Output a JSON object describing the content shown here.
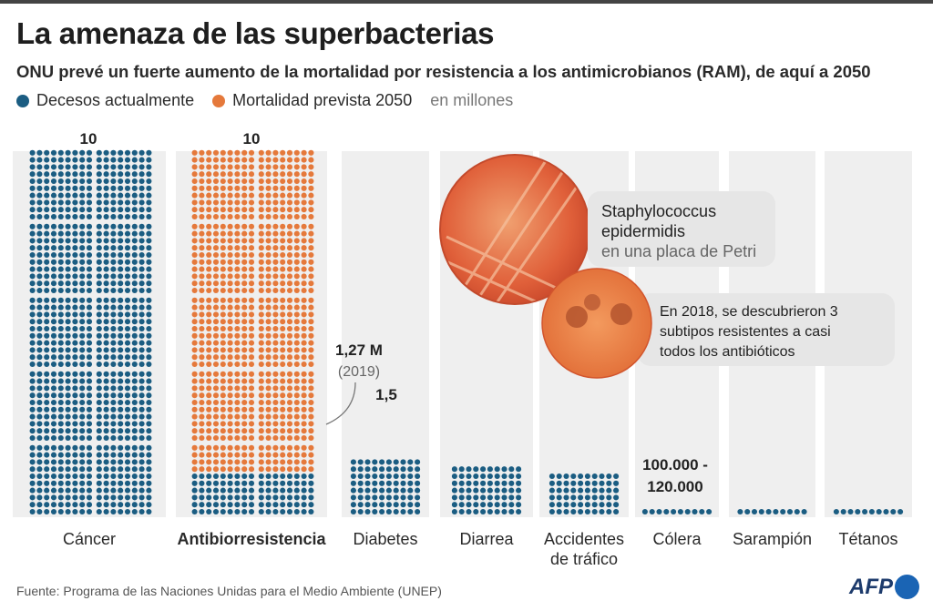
{
  "header": {
    "title": "La amenaza de las superbacterias",
    "subtitle": "ONU prevé un fuerte aumento de la mortalidad por resistencia a los antimicrobianos (RAM), de aquí a 2050"
  },
  "legend": {
    "current_label": "Decesos actualmente",
    "projected_label": "Mortalidad prevista 2050",
    "unit_label": "en millones"
  },
  "colors": {
    "current": "#1b5d82",
    "projected": "#e5793b",
    "column_bg": "#efefef"
  },
  "chart_data": {
    "type": "bar",
    "unit": "millones",
    "categories": [
      "Cáncer",
      "Antibiorresistencia",
      "Diabetes",
      "Diarrea",
      "Accidentes de tráfico",
      "Cólera",
      "Sarampión",
      "Tétanos"
    ],
    "category_labels": [
      [
        "Cáncer"
      ],
      [
        "Antibiorresistencia"
      ],
      [
        "Diabetes"
      ],
      [
        "Diarrea"
      ],
      [
        "Accidentes",
        "de tráfico"
      ],
      [
        "Cólera"
      ],
      [
        "Sarampión"
      ],
      [
        "Tétanos"
      ]
    ],
    "series": [
      {
        "name": "Decesos actualmente",
        "values": [
          10,
          1.27,
          1.5,
          1.4,
          1.2,
          0.11,
          0.1,
          0.05
        ]
      },
      {
        "name": "Mortalidad prevista 2050",
        "values": [
          null,
          10,
          null,
          null,
          null,
          null,
          null,
          null
        ]
      }
    ],
    "value_labels": [
      "10",
      "10",
      "1,5",
      "",
      "",
      "",
      "",
      ""
    ],
    "annotations": {
      "amr_current": {
        "value": "1,27 M",
        "note": "(2019)"
      },
      "cholera": {
        "line1": "100.000 -",
        "line2": "120.000"
      }
    },
    "ylim": [
      0,
      10
    ]
  },
  "callouts": {
    "photo1": {
      "line1": "Staphylococcus",
      "line2": "epidermidis",
      "line3": "en una placa de Petri"
    },
    "photo2": {
      "line1": "En 2018, se descubrieron 3",
      "line2": "subtipos resistentes a casi",
      "line3": "todos los antibióticos"
    }
  },
  "footer": {
    "source": "Fuente: Programa de las Naciones Unidas para el Medio Ambiente (UNEP)",
    "logo": "AFP"
  }
}
